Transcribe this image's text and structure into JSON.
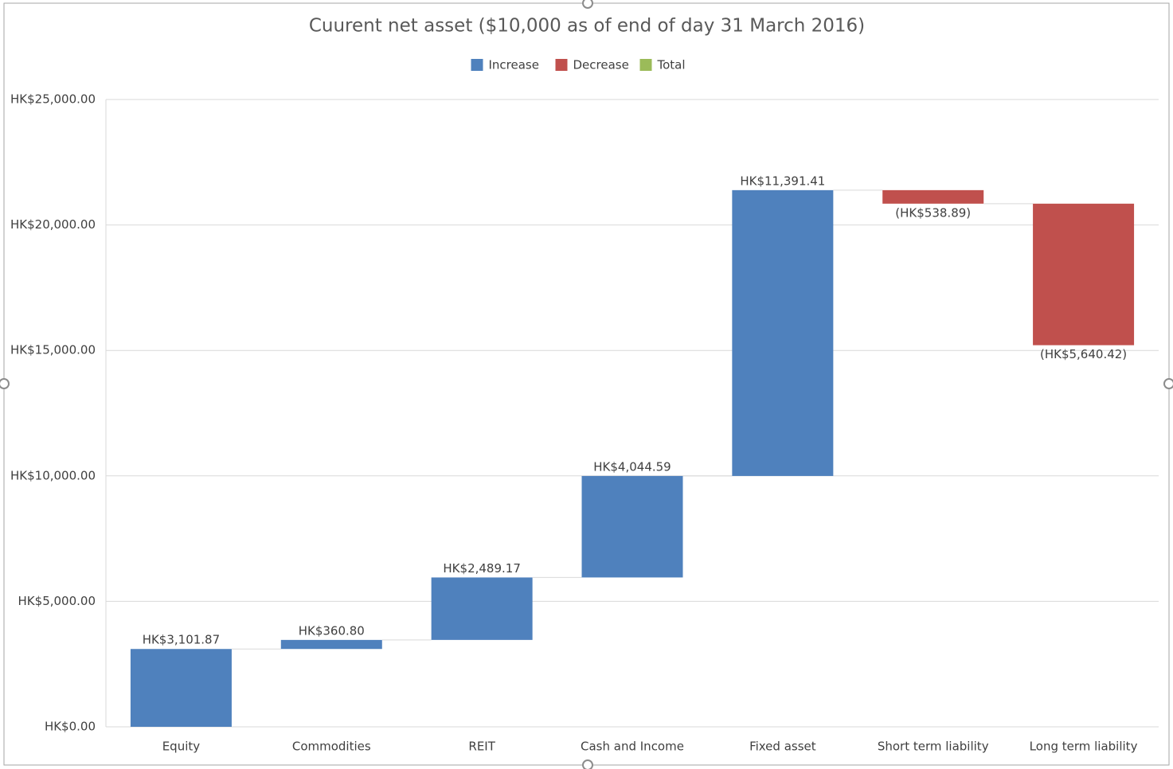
{
  "chart_data": {
    "type": "waterfall",
    "title": "Cuurent net asset  ($10,000 as of end of day 31 March 2016)",
    "categories": [
      "Equity",
      "Commodities",
      "REIT",
      "Cash and Income",
      "Fixed asset",
      "Short term liability",
      "Long term liability"
    ],
    "values": [
      3101.87,
      360.8,
      2489.17,
      4044.59,
      11391.41,
      -538.89,
      -5640.42
    ],
    "value_labels": [
      "HK$3,101.87",
      "HK$360.80",
      "HK$2,489.17",
      "HK$4,044.59",
      "HK$11,391.41",
      "(HK$538.89)",
      "(HK$5,640.42)"
    ],
    "legend_entries": [
      {
        "name": "Increase",
        "color": "#4f81bd"
      },
      {
        "name": "Decrease",
        "color": "#c0504d"
      },
      {
        "name": "Total",
        "color": "#9bbb59"
      }
    ],
    "legend_position": "top",
    "ylim": [
      0,
      25000
    ],
    "yticks": [
      {
        "value": 0,
        "label": "HK$0.00"
      },
      {
        "value": 5000,
        "label": "HK$5,000.00"
      },
      {
        "value": 10000,
        "label": "HK$10,000.00"
      },
      {
        "value": 15000,
        "label": "HK$15,000.00"
      },
      {
        "value": 20000,
        "label": "HK$20,000.00"
      },
      {
        "value": 25000,
        "label": "HK$25,000.00"
      }
    ],
    "grid": true
  }
}
